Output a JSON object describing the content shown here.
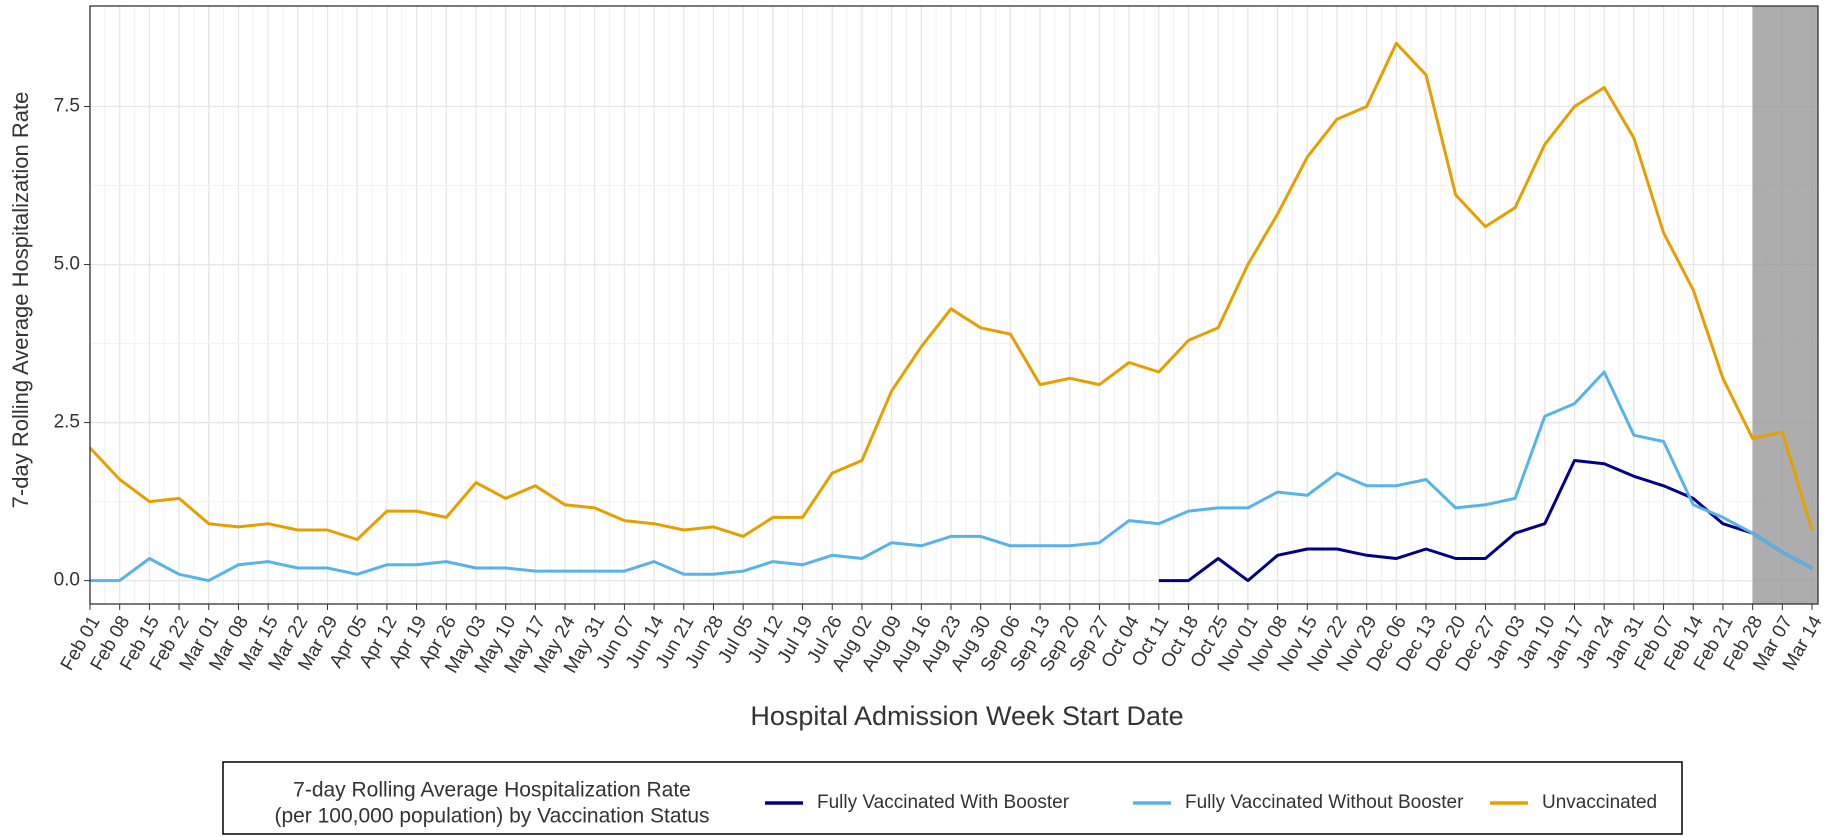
{
  "chart_data": {
    "type": "line",
    "x_label": "Hospital Admission Week Start Date",
    "y_label": "7-day Rolling Average Hospitalization Rate",
    "legend_title": [
      "7-day Rolling Average Hospitalization Rate",
      "(per 100,000 population) by Vaccination Status"
    ],
    "legend": "bottom",
    "grid": true,
    "categories": [
      "Feb 01",
      "Feb 08",
      "Feb 15",
      "Feb 22",
      "Mar 01",
      "Mar 08",
      "Mar 15",
      "Mar 22",
      "Mar 29",
      "Apr 05",
      "Apr 12",
      "Apr 19",
      "Apr 26",
      "May 03",
      "May 10",
      "May 17",
      "May 24",
      "May 31",
      "Jun 07",
      "Jun 14",
      "Jun 21",
      "Jun 28",
      "Jul 05",
      "Jul 12",
      "Jul 19",
      "Jul 26",
      "Aug 02",
      "Aug 09",
      "Aug 16",
      "Aug 23",
      "Aug 30",
      "Sep 06",
      "Sep 13",
      "Sep 20",
      "Sep 27",
      "Oct 04",
      "Oct 11",
      "Oct 18",
      "Oct 25",
      "Nov 01",
      "Nov 08",
      "Nov 15",
      "Nov 22",
      "Nov 29",
      "Dec 06",
      "Dec 13",
      "Dec 20",
      "Dec 27",
      "Jan 03",
      "Jan 10",
      "Jan 17",
      "Jan 24",
      "Jan 31",
      "Feb 07",
      "Feb 14",
      "Feb 21",
      "Feb 28",
      "Mar 07",
      "Mar 14"
    ],
    "ylim": [
      -0.37,
      9.09
    ],
    "yticks": [
      {
        "value": 0,
        "label": "0.0"
      },
      2.5,
      {
        "value": 5,
        "label": "5.0"
      },
      7.5
    ],
    "series": [
      {
        "name": "Fully Vaccinated With Booster",
        "color": "#00008b",
        "values": [
          null,
          null,
          null,
          null,
          null,
          null,
          null,
          null,
          null,
          null,
          null,
          null,
          null,
          null,
          null,
          null,
          null,
          null,
          null,
          null,
          null,
          null,
          null,
          null,
          null,
          null,
          null,
          null,
          null,
          null,
          null,
          null,
          null,
          null,
          null,
          null,
          0,
          0,
          0.35,
          0,
          0.4,
          0.5,
          0.5,
          0.4,
          0.35,
          0.5,
          0.35,
          0.35,
          0.75,
          0.9,
          1.9,
          1.85,
          1.65,
          1.5,
          1.3,
          0.9,
          0.75,
          0.45,
          0.2
        ]
      },
      {
        "name": "Fully Vaccinated Without Booster",
        "color": "#56b4e9",
        "values": [
          0,
          0,
          0.35,
          0.1,
          0,
          0.25,
          0.3,
          0.2,
          0.2,
          0.1,
          0.25,
          0.25,
          0.3,
          0.2,
          0.2,
          0.15,
          0.15,
          0.15,
          0.15,
          0.3,
          0.1,
          0.1,
          0.15,
          0.3,
          0.25,
          0.4,
          0.35,
          0.6,
          0.55,
          0.7,
          0.7,
          0.55,
          0.55,
          0.55,
          0.6,
          0.95,
          0.9,
          1.1,
          1.15,
          1.15,
          1.4,
          1.35,
          1.7,
          1.5,
          1.5,
          1.6,
          1.15,
          1.2,
          1.3,
          2.6,
          2.8,
          3.3,
          2.3,
          2.2,
          1.2,
          1.0,
          0.75,
          0.45,
          0.2
        ]
      },
      {
        "name": "Unvaccinated",
        "color": "#e69f00",
        "values": [
          2.1,
          1.6,
          1.25,
          1.3,
          0.9,
          0.85,
          0.9,
          0.8,
          0.8,
          0.65,
          1.1,
          1.1,
          1.0,
          1.55,
          1.3,
          1.5,
          1.2,
          1.15,
          0.95,
          0.9,
          0.8,
          0.85,
          0.7,
          1.0,
          1.0,
          1.7,
          1.9,
          3.0,
          3.7,
          4.3,
          4.0,
          3.9,
          3.1,
          3.2,
          3.1,
          3.45,
          3.3,
          3.8,
          4.0,
          5.0,
          5.8,
          6.7,
          7.3,
          7.5,
          8.5,
          8.0,
          6.1,
          5.6,
          5.9,
          6.9,
          7.5,
          7.8,
          7.0,
          5.5,
          4.6,
          3.2,
          2.25,
          2.35,
          0.8
        ]
      }
    ]
  }
}
